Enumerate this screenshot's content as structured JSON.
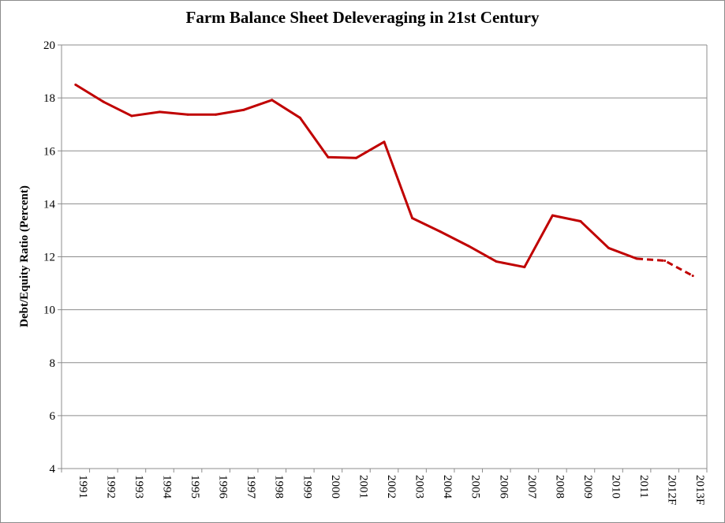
{
  "chart_data": {
    "type": "line",
    "title": "Farm Balance Sheet Deleveraging in 21st Century",
    "xlabel": "",
    "ylabel": "Debt/Equity Ratio (Percent)",
    "ylim": [
      4,
      20
    ],
    "yticks": [
      4,
      6,
      8,
      10,
      12,
      14,
      16,
      18,
      20
    ],
    "grid": true,
    "line_color": "#c00000",
    "categories": [
      "1991",
      "1992",
      "1993",
      "1994",
      "1995",
      "1996",
      "1997",
      "1998",
      "1999",
      "2000",
      "2001",
      "2002",
      "2003",
      "2004",
      "2005",
      "2006",
      "2007",
      "2008",
      "2009",
      "2010",
      "2011",
      "2012F",
      "2013F"
    ],
    "series": [
      {
        "values": [
          18.5,
          17.85,
          17.32,
          17.47,
          17.37,
          17.37,
          17.55,
          17.92,
          17.25,
          15.76,
          15.73,
          16.34,
          13.46,
          12.95,
          12.41,
          11.82,
          11.61,
          13.56,
          13.34,
          12.33,
          11.93,
          11.85,
          11.28
        ],
        "forecast_start_index": 20
      }
    ]
  }
}
